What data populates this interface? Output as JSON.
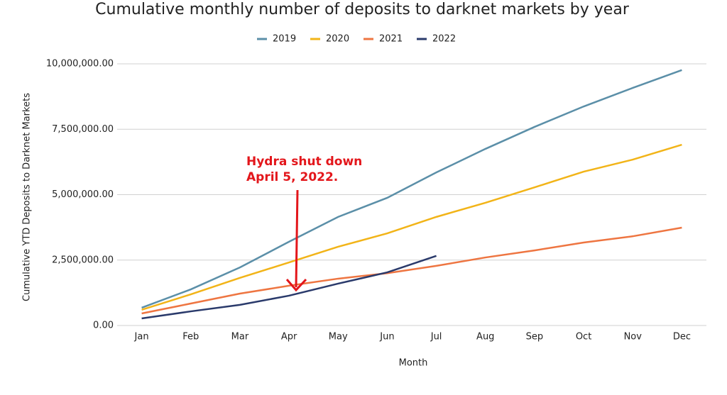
{
  "chart_data": {
    "type": "line",
    "title": "Cumulative monthly number of deposits to darknet markets by year",
    "x_label": "Month",
    "y_label": "Cumulative YTD Deposits to Darknet Markets",
    "annotation": [
      "Hydra shut down",
      "April 5, 2022."
    ],
    "categories": [
      "Jan",
      "Feb",
      "Mar",
      "Apr",
      "May",
      "Jun",
      "Jul",
      "Aug",
      "Sep",
      "Oct",
      "Nov",
      "Dec"
    ],
    "series": [
      {
        "name": "2019",
        "color": "#5b8fa8",
        "values": [
          680000,
          1380000,
          2220000,
          3200000,
          4150000,
          4880000,
          5850000,
          6750000,
          7590000,
          8370000,
          9080000,
          9760000
        ]
      },
      {
        "name": "2020",
        "color": "#f2b418",
        "values": [
          600000,
          1190000,
          1820000,
          2410000,
          3010000,
          3520000,
          4150000,
          4690000,
          5280000,
          5880000,
          6340000,
          6910000
        ]
      },
      {
        "name": "2021",
        "color": "#ee7541",
        "values": [
          460000,
          840000,
          1220000,
          1520000,
          1790000,
          2000000,
          2280000,
          2600000,
          2870000,
          3170000,
          3410000,
          3740000
        ]
      },
      {
        "name": "2022",
        "color": "#2a3a6b",
        "values": [
          270000,
          540000,
          790000,
          1140000,
          1600000,
          2030000,
          2660000,
          null,
          null,
          null,
          null,
          null
        ]
      }
    ],
    "ylim": [
      0,
      10000000
    ],
    "yticks": [
      {
        "value": 0,
        "label": "0.00"
      },
      {
        "value": 2500000,
        "label": "2,500,000.00"
      },
      {
        "value": 5000000,
        "label": "5,000,000.00"
      },
      {
        "value": 7500000,
        "label": "7,500,000.00"
      },
      {
        "value": 10000000,
        "label": "10,000,000.00"
      }
    ],
    "grid": true,
    "legend": "top"
  }
}
